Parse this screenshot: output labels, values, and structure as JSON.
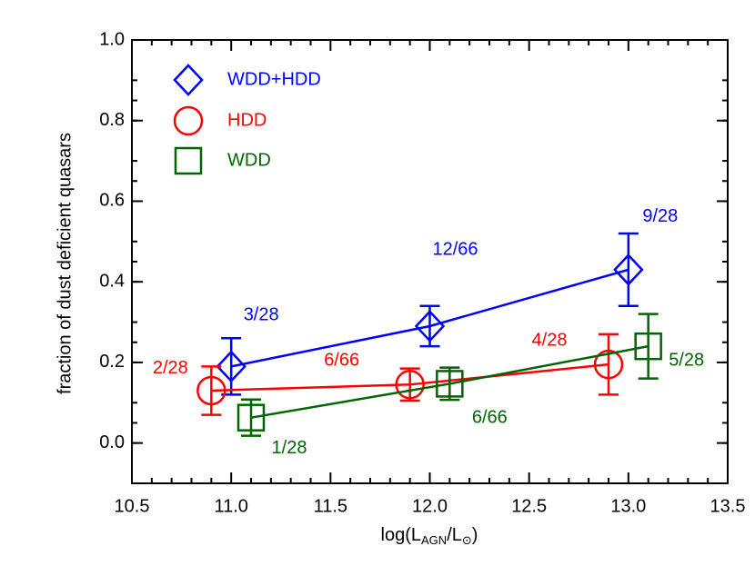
{
  "chart_data": {
    "type": "line",
    "y_label": "fraction of dust deficient quasars",
    "x_label_parts": [
      "log(L",
      "AGN",
      "/L",
      "⊙",
      ")"
    ],
    "xlim": [
      10.5,
      13.5
    ],
    "xticks": [
      10.5,
      {
        "value": 11,
        "label": "11.0"
      },
      11.5,
      {
        "value": 12,
        "label": "12.0"
      },
      12.5,
      {
        "value": 13,
        "label": "13.0"
      },
      13.5
    ],
    "ylim": [
      -0.1,
      1.0
    ],
    "yticks": [
      {
        "value": 0,
        "label": "0.0"
      },
      0.2,
      0.4,
      0.6,
      0.8,
      {
        "value": 1,
        "label": "1.0"
      }
    ],
    "series": [
      {
        "name": "WDD+HDD",
        "color": "#0000ff",
        "marker": "diamond",
        "x": [
          11.0,
          12.0,
          13.0
        ],
        "values": [
          0.19,
          0.29,
          0.43
        ],
        "errors": [
          0.07,
          0.05,
          0.09
        ],
        "counts": [
          "3/28",
          "12/66",
          "9/28"
        ]
      },
      {
        "name": "HDD",
        "color": "#ff0000",
        "marker": "circle",
        "x": [
          10.9,
          11.9,
          12.9
        ],
        "values": [
          0.13,
          0.145,
          0.195
        ],
        "errors": [
          0.06,
          0.04,
          0.075
        ],
        "counts": [
          "2/28",
          "6/66",
          "4/28"
        ]
      },
      {
        "name": "WDD",
        "color": "#006400",
        "marker": "square",
        "x": [
          11.1,
          12.1,
          13.1
        ],
        "values": [
          0.063,
          0.147,
          0.24
        ],
        "errors": [
          0.045,
          0.04,
          0.08
        ],
        "counts": [
          "1/28",
          "6/66",
          "5/28"
        ]
      }
    ]
  }
}
